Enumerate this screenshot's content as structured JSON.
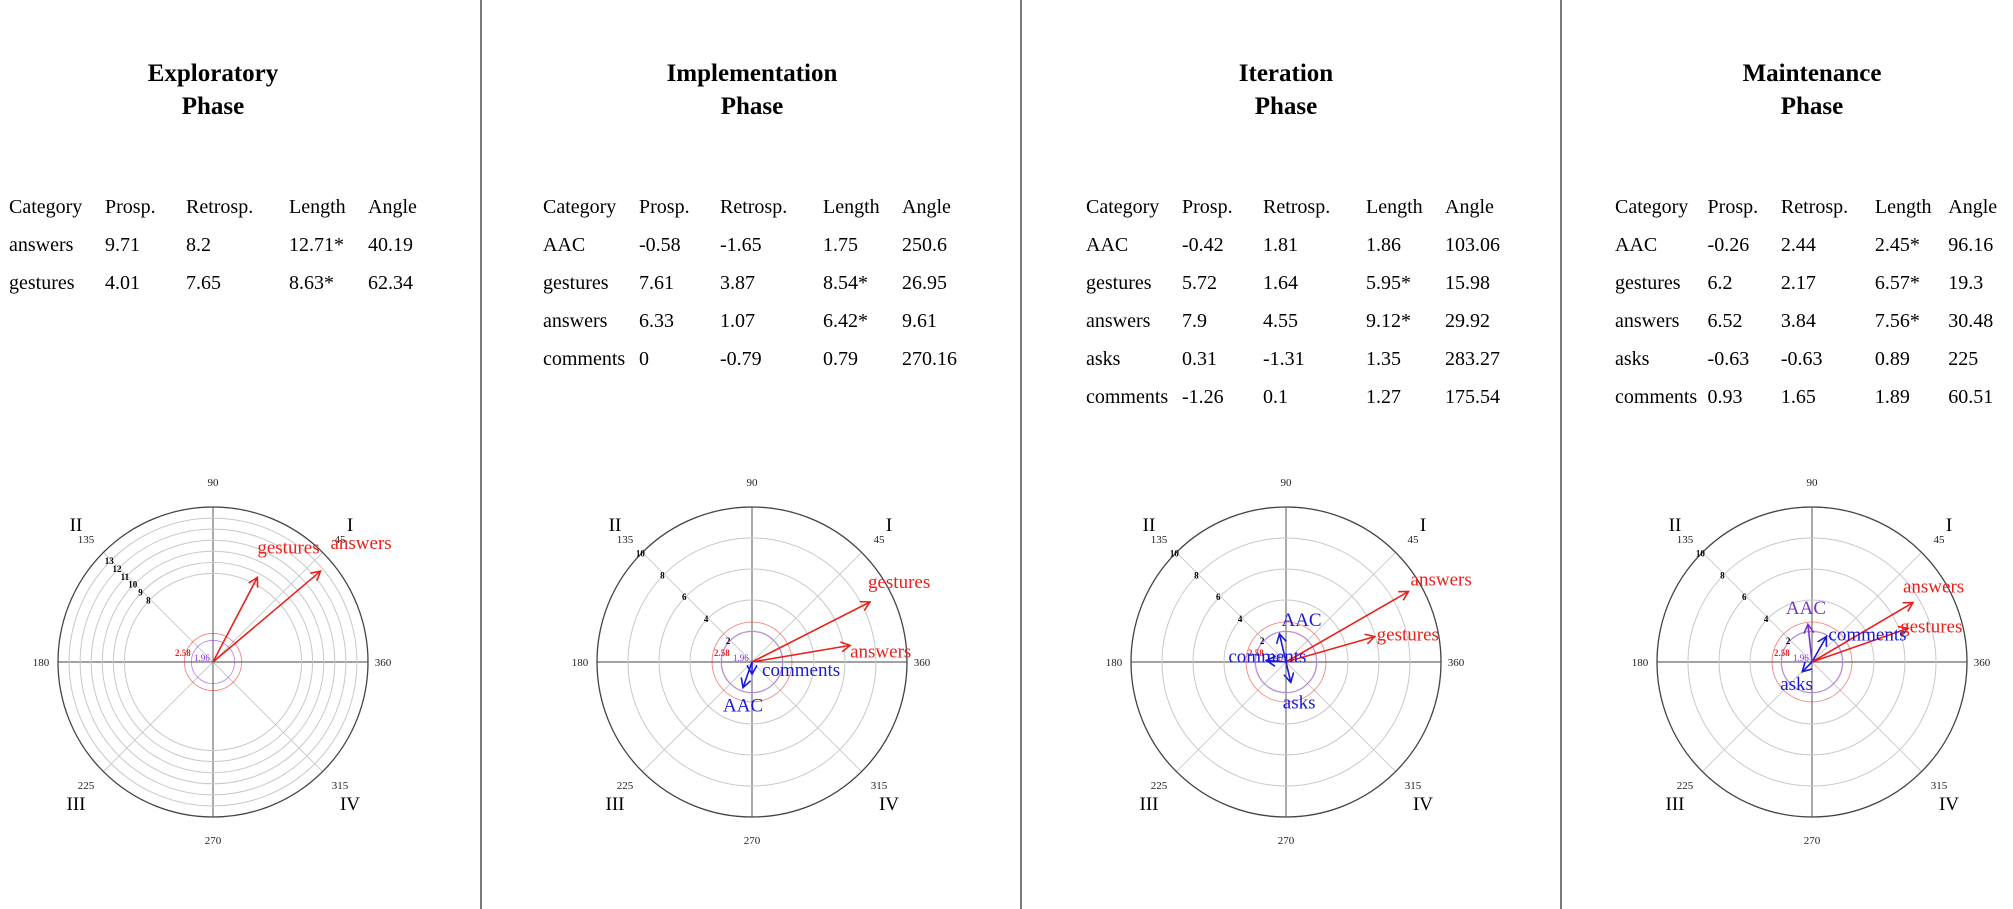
{
  "colors": {
    "positive": "#e8221b",
    "negative": "#1a1ad4",
    "mixed": "#7a36c8",
    "crit258": "#e8221b",
    "crit196": "#8a2be2",
    "grid": "#c8c8c8",
    "axis": "#444444",
    "divider": "#7a7a7a"
  },
  "chart_data": [
    {
      "type": "table",
      "title": [
        "Exploratory",
        "Phase"
      ],
      "headers": [
        "Category",
        "Prosp.",
        "Retrosp.",
        "Length",
        "Angle"
      ],
      "rows": [
        [
          "answers",
          "9.71",
          "8.2",
          "12.71*",
          "40.19"
        ],
        [
          "gestures",
          "4.01",
          "7.65",
          "8.63*",
          "62.34"
        ]
      ],
      "polar": {
        "type": "polar-vector",
        "rmax": 14,
        "rings": [
          8,
          9,
          10,
          11,
          12,
          13
        ],
        "ring_labels": [
          "8",
          "9",
          "10",
          "11",
          "12",
          "13"
        ],
        "angle_labels": [
          "90",
          "45",
          "360",
          "315",
          "270",
          "225",
          "180",
          "135"
        ],
        "quadrants": [
          "I",
          "II",
          "III",
          "IV"
        ],
        "critical": [
          "2.58",
          "1.96"
        ],
        "vectors": [
          {
            "label": "answers",
            "length": 12.71,
            "angle": 40.19,
            "color": "positive"
          },
          {
            "label": "gestures",
            "length": 8.63,
            "angle": 62.34,
            "color": "positive"
          }
        ]
      }
    },
    {
      "type": "table",
      "title": [
        "Implementation",
        "Phase"
      ],
      "headers": [
        "Category",
        "Prosp.",
        "Retrosp.",
        "Length",
        "Angle"
      ],
      "rows": [
        [
          "AAC",
          "-0.58",
          "-1.65",
          "1.75",
          "250.6"
        ],
        [
          "gestures",
          "7.61",
          "3.87",
          "8.54*",
          "26.95"
        ],
        [
          "answers",
          "6.33",
          "1.07",
          "6.42*",
          "9.61"
        ],
        [
          "comments",
          "0",
          "-0.79",
          "0.79",
          "270.16"
        ]
      ],
      "polar": {
        "type": "polar-vector",
        "rmax": 10,
        "rings": [
          2,
          4,
          6,
          8,
          10
        ],
        "ring_labels": [
          "2",
          "4",
          "6",
          "8",
          "10"
        ],
        "angle_labels": [
          "90",
          "45",
          "360",
          "315",
          "270",
          "225",
          "180",
          "135"
        ],
        "quadrants": [
          "I",
          "II",
          "III",
          "IV"
        ],
        "critical": [
          "2.58",
          "1.96"
        ],
        "vectors": [
          {
            "label": "gestures",
            "length": 8.54,
            "angle": 26.95,
            "color": "positive"
          },
          {
            "label": "answers",
            "length": 6.42,
            "angle": 9.61,
            "color": "positive"
          },
          {
            "label": "comments",
            "length": 0.79,
            "angle": 270.16,
            "color": "negative"
          },
          {
            "label": "AAC",
            "length": 1.75,
            "angle": 250.6,
            "color": "negative"
          }
        ]
      }
    },
    {
      "type": "table",
      "title": [
        "Iteration",
        "Phase"
      ],
      "headers": [
        "Category",
        "Prosp.",
        "Retrosp.",
        "Length",
        "Angle"
      ],
      "rows": [
        [
          "AAC",
          "-0.42",
          "1.81",
          "1.86",
          "103.06"
        ],
        [
          "gestures",
          "5.72",
          "1.64",
          "5.95*",
          "15.98"
        ],
        [
          "answers",
          "7.9",
          "4.55",
          "9.12*",
          "29.92"
        ],
        [
          "asks",
          "0.31",
          "-1.31",
          "1.35",
          "283.27"
        ],
        [
          "comments",
          "-1.26",
          "0.1",
          "1.27",
          "175.54"
        ]
      ],
      "polar": {
        "type": "polar-vector",
        "rmax": 10,
        "rings": [
          2,
          4,
          6,
          8,
          10
        ],
        "ring_labels": [
          "2",
          "4",
          "6",
          "8",
          "10"
        ],
        "angle_labels": [
          "90",
          "45",
          "360",
          "315",
          "270",
          "225",
          "180",
          "135"
        ],
        "quadrants": [
          "I",
          "II",
          "III",
          "IV"
        ],
        "critical": [
          "2.58",
          "1.96"
        ],
        "vectors": [
          {
            "label": "answers",
            "length": 9.12,
            "angle": 29.92,
            "color": "positive"
          },
          {
            "label": "gestures",
            "length": 5.95,
            "angle": 15.98,
            "color": "positive"
          },
          {
            "label": "AAC",
            "length": 1.86,
            "angle": 103.06,
            "color": "negative"
          },
          {
            "label": "comments",
            "length": 1.27,
            "angle": 175.54,
            "color": "negative"
          },
          {
            "label": "asks",
            "length": 1.35,
            "angle": 283.27,
            "color": "negative"
          }
        ]
      }
    },
    {
      "type": "table",
      "title": [
        "Maintenance",
        "Phase"
      ],
      "headers": [
        "Category",
        "Prosp.",
        "Retrosp.",
        "Length",
        "Angle"
      ],
      "rows": [
        [
          "AAC",
          "-0.26",
          "2.44",
          "2.45*",
          "96.16"
        ],
        [
          "gestures",
          "6.2",
          "2.17",
          "6.57*",
          "19.3"
        ],
        [
          "answers",
          "6.52",
          "3.84",
          "7.56*",
          "30.48"
        ],
        [
          "asks",
          "-0.63",
          "-0.63",
          "0.89",
          "225"
        ],
        [
          "comments",
          "0.93",
          "1.65",
          "1.89",
          "60.51"
        ]
      ],
      "polar": {
        "type": "polar-vector",
        "rmax": 10,
        "rings": [
          2,
          4,
          6,
          8,
          10
        ],
        "ring_labels": [
          "2",
          "4",
          "6",
          "8",
          "10"
        ],
        "angle_labels": [
          "90",
          "45",
          "360",
          "315",
          "270",
          "225",
          "180",
          "135"
        ],
        "quadrants": [
          "I",
          "II",
          "III",
          "IV"
        ],
        "critical": [
          "2.58",
          "1.96"
        ],
        "vectors": [
          {
            "label": "answers",
            "length": 7.56,
            "angle": 30.48,
            "color": "positive"
          },
          {
            "label": "gestures",
            "length": 6.57,
            "angle": 19.3,
            "color": "positive"
          },
          {
            "label": "comments",
            "length": 1.89,
            "angle": 60.51,
            "color": "negative"
          },
          {
            "label": "AAC",
            "length": 2.45,
            "angle": 96.16,
            "color": "mixed"
          },
          {
            "label": "asks",
            "length": 0.89,
            "angle": 225,
            "color": "negative"
          }
        ]
      }
    }
  ]
}
